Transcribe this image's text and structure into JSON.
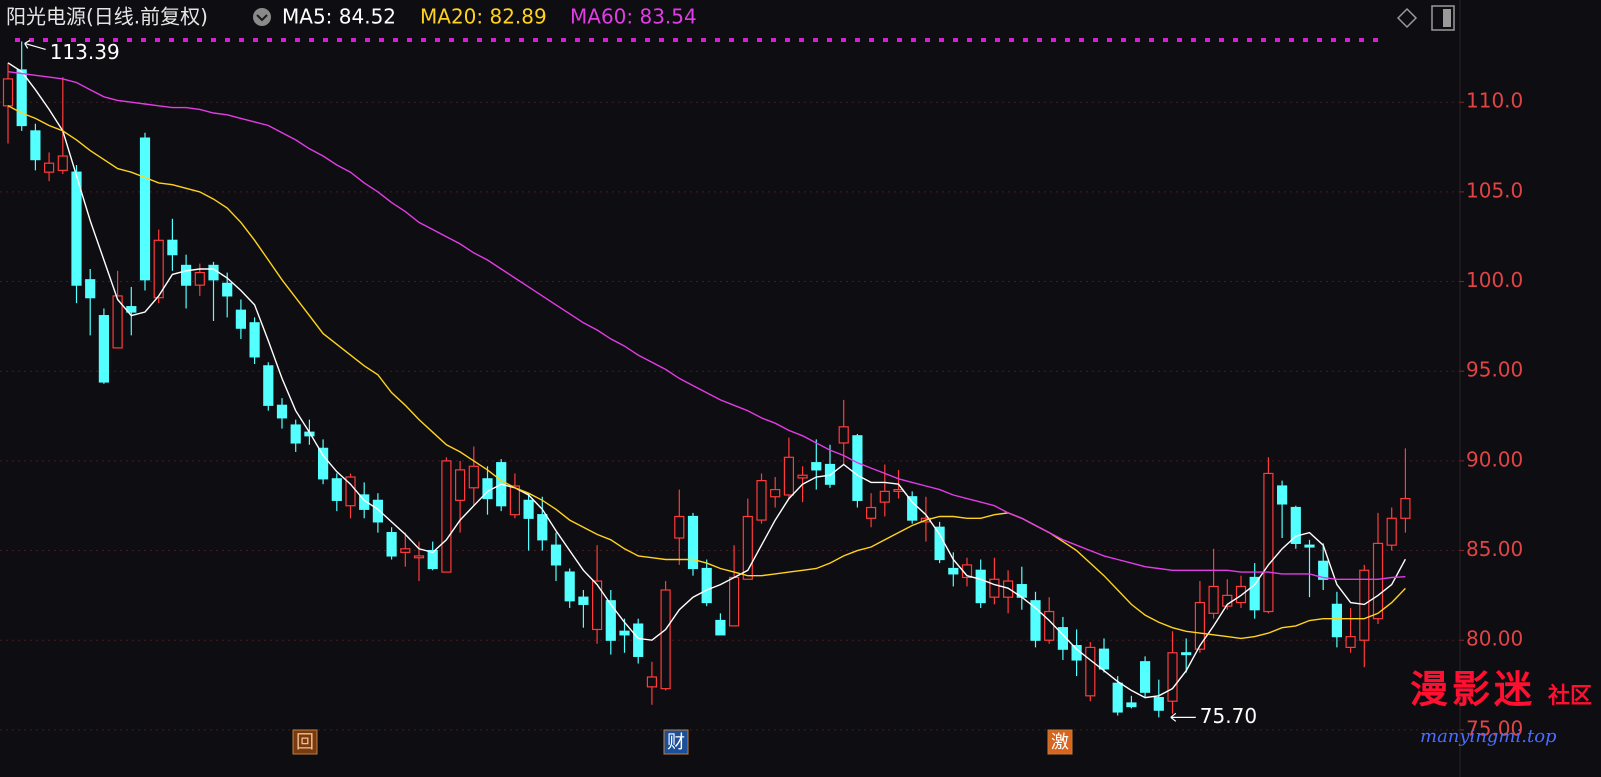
{
  "chart_data": {
    "type": "candlestick",
    "title": "阳光电源(日线.前复权)",
    "up_color": "#ff3b3b",
    "down_color": "#54ffff",
    "open": [
      109.8,
      111.8,
      108.4,
      106.1,
      106.2,
      106.1,
      100.1,
      98.1,
      96.3,
      98.6,
      108,
      99.1,
      102.3,
      100.9,
      99.8,
      100.9,
      99.9,
      98.4,
      97.7,
      95.3,
      93.1,
      92,
      91.6,
      90.7,
      89,
      87.5,
      88.1,
      87.8,
      86,
      84.9,
      84.6,
      85,
      83.8,
      87.8,
      88.5,
      89,
      89.9,
      87,
      87.8,
      87,
      85.3,
      83.8,
      82.4,
      80.6,
      82.2,
      80.5,
      80.9,
      77.4,
      77.3,
      85.7,
      86.9,
      84,
      81.1,
      80.8,
      83.4,
      86.7,
      88,
      88.1,
      89.05,
      89.9,
      89.8,
      91,
      91.4,
      86.8,
      87.7,
      88.3,
      88,
      86.6,
      86.3,
      84,
      83.5,
      83.9,
      82.4,
      82.4,
      83.1,
      82.2,
      80,
      80.7,
      79.7,
      76.9,
      79.5,
      77.6,
      76.5,
      78.8,
      76.8,
      76.6,
      79.3,
      79.5,
      81.5,
      81.9,
      82.1,
      83.5,
      81.6,
      88.6,
      87.4,
      85.3,
      84.4,
      82,
      79.6,
      80,
      81.2,
      85.3,
      86.8
    ],
    "high": [
      112.2,
      113.39,
      108.8,
      107.2,
      111.4,
      106.5,
      100.7,
      98.5,
      100.6,
      99.7,
      108.3,
      102.9,
      103.5,
      101.5,
      101,
      101.1,
      100.5,
      99,
      98,
      95.5,
      93.5,
      92.3,
      92.3,
      91.2,
      89.3,
      89.3,
      88.8,
      88.2,
      86.3,
      86,
      85.5,
      85.5,
      90.2,
      90,
      90.8,
      89.7,
      90.1,
      89.3,
      88.2,
      88,
      86,
      84,
      82.8,
      85.3,
      82.8,
      81.2,
      81.2,
      78.8,
      83.3,
      88.4,
      87.1,
      84.5,
      81.5,
      85.3,
      87.9,
      89.3,
      89.1,
      91.3,
      89.7,
      91.2,
      90.9,
      93.4,
      91.5,
      88.2,
      89.8,
      89.5,
      88.3,
      88,
      86.6,
      84.9,
      84.6,
      84.5,
      84.6,
      83.9,
      84.1,
      82.7,
      82.4,
      81.3,
      80.6,
      79.9,
      80.1,
      78,
      76.9,
      79.1,
      77.8,
      80.5,
      80.1,
      83.3,
      85.1,
      83.4,
      83.6,
      84.3,
      90.2,
      88.9,
      87.5,
      85.6,
      85.4,
      82.7,
      81.8,
      84.2,
      87.1,
      87.4,
      90.7
    ],
    "low": [
      107.7,
      108.4,
      106.2,
      105.6,
      106,
      98.8,
      97,
      94.3,
      96.3,
      97,
      99.5,
      98.8,
      100.6,
      98.5,
      99.2,
      97.8,
      98,
      96.8,
      95.4,
      92.8,
      91.8,
      90.5,
      90.9,
      88.7,
      87.2,
      86.8,
      86.8,
      86,
      84.5,
      84.1,
      83.3,
      83.9,
      83.8,
      86,
      87.5,
      87,
      87.2,
      86.8,
      85,
      85,
      83.3,
      81.8,
      80.7,
      79.8,
      79.2,
      79.3,
      78.7,
      76.4,
      77.2,
      84.2,
      83.6,
      81.9,
      80.3,
      80.8,
      83.4,
      86.5,
      87.4,
      87.9,
      87.7,
      88.4,
      88.5,
      89.8,
      87.4,
      86.3,
      86.9,
      87.9,
      86.5,
      85.5,
      84.3,
      83,
      83,
      81.8,
      82,
      81.5,
      81.7,
      79.6,
      79.8,
      78.9,
      78,
      76.6,
      78.2,
      75.8,
      76.2,
      76.8,
      75.7,
      75.9,
      78.2,
      79.3,
      81.2,
      81.7,
      81.8,
      81.2,
      81.5,
      85.7,
      85.1,
      82.4,
      82.8,
      79.6,
      79.3,
      78.5,
      80.9,
      85,
      86
    ],
    "close": [
      111.3,
      108.7,
      106.8,
      106.6,
      107,
      99.8,
      99.1,
      94.4,
      99.2,
      98.3,
      100.1,
      102.3,
      101.5,
      99.8,
      100.5,
      100.1,
      99.2,
      97.4,
      95.8,
      93.1,
      92.4,
      91,
      91.4,
      89,
      87.8,
      89.1,
      87.3,
      86.6,
      84.7,
      85.1,
      84.7,
      84,
      90,
      89.5,
      89.7,
      87.9,
      87.5,
      88.6,
      86.8,
      85.6,
      84.2,
      82.2,
      82,
      83.3,
      80,
      80.3,
      79.1,
      77.95,
      82.8,
      86.9,
      84,
      82.1,
      80.3,
      83.5,
      86.9,
      88.9,
      88.4,
      90.2,
      89.2,
      89.5,
      88.7,
      91.9,
      87.8,
      87.4,
      88.3,
      88.4,
      86.7,
      86.8,
      84.5,
      83.7,
      84.2,
      82.1,
      83.4,
      83.3,
      82.4,
      80,
      81.6,
      79.5,
      78.9,
      79.6,
      78.4,
      76,
      76.3,
      77.1,
      76.1,
      79.3,
      79.2,
      82.1,
      83,
      82.5,
      83,
      81.7,
      89.3,
      87.6,
      85.4,
      85.2,
      83.4,
      80.2,
      80.2,
      83.9,
      85.4,
      86.8,
      87.9
    ],
    "series": [
      {
        "name": "MA5: 84.52",
        "color": "#ffffff",
        "values": [
          112.2,
          111.7,
          110.7,
          109.6,
          108.4,
          105.9,
          103.4,
          101.2,
          99,
          98.1,
          98.3,
          99.2,
          100.4,
          100.6,
          100.7,
          100.7,
          100.2,
          99.5,
          98.7,
          96.7,
          94.6,
          92.8,
          91.6,
          90.3,
          89.4,
          88.7,
          87.8,
          87.3,
          86.6,
          85.9,
          85.1,
          84.9,
          85.6,
          86.7,
          87.5,
          88.3,
          88.7,
          88.5,
          88.1,
          87.3,
          86.1,
          85,
          83.9,
          83.1,
          82,
          81,
          80.1,
          80,
          80.6,
          81.7,
          82.4,
          82.8,
          83.1,
          83.5,
          83.9,
          85.3,
          86.7,
          87.9,
          88.7,
          89.1,
          89.2,
          89.8,
          89.2,
          88.8,
          88.8,
          88.7,
          87.7,
          87,
          85.9,
          84.5,
          83.6,
          83.4,
          83.1,
          82.9,
          82.4,
          81.8,
          81.1,
          80.3,
          79.5,
          78.9,
          78.3,
          77.7,
          77.2,
          76.8,
          76.9,
          77.3,
          78.3,
          79.7,
          80.8,
          82,
          82.5,
          83.1,
          84.2,
          85.1,
          85.8,
          86,
          85.3,
          83.1,
          82.1,
          82,
          82.5,
          83.1,
          84.52
        ]
      },
      {
        "name": "MA20: 82.89",
        "color": "#ffd21f",
        "values": [
          109.8,
          109.4,
          109.1,
          108.7,
          108.4,
          107.9,
          107.3,
          106.8,
          106.3,
          106.1,
          105.8,
          105.5,
          105.4,
          105.2,
          105,
          104.6,
          104.1,
          103.3,
          102.3,
          101.2,
          100.1,
          99.1,
          98.1,
          97.1,
          96.5,
          95.9,
          95.3,
          94.8,
          93.8,
          93.1,
          92.3,
          91.6,
          90.9,
          90.5,
          90,
          89.5,
          88.9,
          88.5,
          88.2,
          87.8,
          87.3,
          86.7,
          86.3,
          85.9,
          85.6,
          85.1,
          84.7,
          84.6,
          84.5,
          84.5,
          84.5,
          84.3,
          84,
          83.8,
          83.6,
          83.6,
          83.7,
          83.8,
          83.9,
          84,
          84.3,
          84.7,
          85,
          85.2,
          85.6,
          86,
          86.4,
          86.7,
          86.9,
          86.9,
          86.8,
          86.8,
          87,
          87.1,
          86.8,
          86.4,
          86,
          85.5,
          85,
          84.3,
          83.6,
          82.8,
          82,
          81.4,
          81,
          80.7,
          80.5,
          80.4,
          80.3,
          80.2,
          80.1,
          80.2,
          80.4,
          80.7,
          80.8,
          81.1,
          81.2,
          81.2,
          81.2,
          81.2,
          81.5,
          82.1,
          82.89
        ]
      },
      {
        "name": "MA60: 83.54",
        "color": "#e23ce6",
        "values": [
          111.7,
          111.6,
          111.5,
          111.4,
          111.3,
          111.1,
          110.7,
          110.3,
          110.1,
          110,
          109.9,
          109.8,
          109.7,
          109.7,
          109.6,
          109.4,
          109.3,
          109.1,
          108.9,
          108.7,
          108.3,
          107.9,
          107.4,
          107,
          106.5,
          106.1,
          105.5,
          105,
          104.4,
          103.9,
          103.3,
          102.9,
          102.5,
          102.1,
          101.6,
          101.2,
          100.7,
          100.2,
          99.7,
          99.2,
          98.7,
          98.2,
          97.7,
          97.3,
          96.8,
          96.4,
          95.9,
          95.5,
          95.1,
          94.6,
          94.2,
          93.8,
          93.4,
          93.1,
          92.8,
          92.4,
          92.1,
          91.7,
          91.4,
          91,
          90.6,
          90.3,
          89.9,
          89.6,
          89.3,
          89,
          88.8,
          88.6,
          88.4,
          88.1,
          87.9,
          87.7,
          87.5,
          87.1,
          86.8,
          86.4,
          86,
          85.6,
          85.3,
          85,
          84.7,
          84.5,
          84.3,
          84.1,
          84,
          83.9,
          83.9,
          83.9,
          83.9,
          83.9,
          83.8,
          83.8,
          83.8,
          83.7,
          83.7,
          83.7,
          83.5,
          83.4,
          83.4,
          83.4,
          83.4,
          83.5,
          83.54
        ]
      }
    ],
    "ylim": [
      73.6,
      115.7
    ],
    "yticks": [
      {
        "value": 75,
        "label": "75.00"
      },
      {
        "value": 80,
        "label": "80.00"
      },
      {
        "value": 85,
        "label": "85.00"
      },
      {
        "value": 90,
        "label": "90.00"
      },
      {
        "value": 95,
        "label": "95.00"
      },
      {
        "value": 100,
        "label": "100.0"
      },
      {
        "value": 105,
        "label": "105.0"
      },
      {
        "value": 110,
        "label": "110.0"
      }
    ],
    "grid": true,
    "annotations": [
      "113.39",
      "75.70"
    ],
    "markers": [
      "回",
      "财",
      "激"
    ],
    "watermark": [
      "漫影迷",
      "社区",
      "manyingmi.top"
    ]
  }
}
